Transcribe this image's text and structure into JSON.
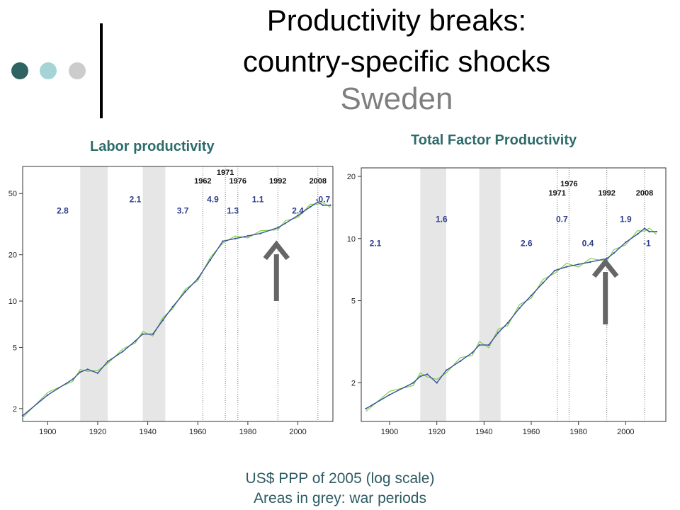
{
  "slide": {
    "title_line1": "Productivity breaks:",
    "title_line2": "country-specific shocks",
    "title_line3": "Sweden",
    "bullet_colors": [
      "#2f6363",
      "#a6d3d6",
      "#cccccc"
    ],
    "footer_line1": "US$ PPP of 2005 (log scale)",
    "footer_line2": "Areas in grey: war periods"
  },
  "chart_data": [
    {
      "type": "line",
      "title": "Labor productivity",
      "xlim": [
        1890,
        2014
      ],
      "ylim": [
        1.65,
        75
      ],
      "yscale": "log",
      "x_ticks": [
        "1900",
        "1920",
        "1940",
        "1960",
        "1980",
        "2000"
      ],
      "y_ticks": [
        "2",
        "5",
        "10",
        "20",
        "50"
      ],
      "war_periods": [
        [
          1913,
          1924
        ],
        [
          1938,
          1947
        ]
      ],
      "break_years": [
        {
          "year": 1962,
          "label": "1962"
        },
        {
          "year": 1971,
          "label": "1971"
        },
        {
          "year": 1976,
          "label": "1976"
        },
        {
          "year": 1992,
          "label": "1992"
        },
        {
          "year": 2008,
          "label": "2008"
        }
      ],
      "growth_rates": [
        {
          "x": 1906,
          "y": 37,
          "label": "2.8"
        },
        {
          "x": 1935,
          "y": 44,
          "label": "2.1"
        },
        {
          "x": 1954,
          "y": 37,
          "label": "3.7"
        },
        {
          "x": 1966,
          "y": 44,
          "label": "4.9"
        },
        {
          "x": 1974,
          "y": 37,
          "label": "1.3"
        },
        {
          "x": 1984,
          "y": 44,
          "label": "1.1"
        },
        {
          "x": 2000,
          "y": 37,
          "label": "2.4"
        },
        {
          "x": 2010,
          "y": 44,
          "label": "-0.7"
        }
      ],
      "arrow_year": 1992,
      "series": [
        {
          "values": [
            [
              1890,
              1.8
            ],
            [
              1900,
              2.45
            ],
            [
              1910,
              3.1
            ],
            [
              1913,
              3.45
            ],
            [
              1916,
              3.6
            ],
            [
              1920,
              3.4
            ],
            [
              1924,
              4.05
            ],
            [
              1930,
              4.7
            ],
            [
              1935,
              5.5
            ],
            [
              1938,
              6.1
            ],
            [
              1942,
              6.1
            ],
            [
              1946,
              7.5
            ],
            [
              1950,
              9.2
            ],
            [
              1955,
              11.5
            ],
            [
              1960,
              14.0
            ],
            [
              1965,
              18.5
            ],
            [
              1970,
              24.5
            ],
            [
              1975,
              25.5
            ],
            [
              1980,
              26.5
            ],
            [
              1985,
              27.5
            ],
            [
              1992,
              30
            ],
            [
              1995,
              32
            ],
            [
              2000,
              36
            ],
            [
              2005,
              41
            ],
            [
              2008,
              44
            ],
            [
              2010,
              42
            ],
            [
              2013,
              42
            ]
          ]
        }
      ]
    },
    {
      "type": "line",
      "title": "Total Factor Productivity",
      "xlim": [
        1888,
        2017
      ],
      "ylim": [
        1.3,
        22
      ],
      "yscale": "log",
      "x_ticks": [
        "1900",
        "1920",
        "1940",
        "1960",
        "1980",
        "2000"
      ],
      "y_ticks": [
        "2",
        "5",
        "10",
        "20"
      ],
      "war_periods": [
        [
          1913,
          1924
        ],
        [
          1938,
          1947
        ]
      ],
      "break_years": [
        {
          "year": 1971,
          "label": "1971"
        },
        {
          "year": 1976,
          "label": "1976"
        },
        {
          "year": 1992,
          "label": "1992"
        },
        {
          "year": 2008,
          "label": "2008"
        }
      ],
      "growth_rates": [
        {
          "x": 1894,
          "y": 9.2,
          "label": "2.1"
        },
        {
          "x": 1922,
          "y": 12,
          "label": "1.6"
        },
        {
          "x": 1958,
          "y": 9.2,
          "label": "2.6"
        },
        {
          "x": 1973,
          "y": 12,
          "label": "0.7"
        },
        {
          "x": 1984,
          "y": 9.2,
          "label": "0.4"
        },
        {
          "x": 2000,
          "y": 12,
          "label": "1.9"
        },
        {
          "x": 2009,
          "y": 9.2,
          "label": "-1"
        }
      ],
      "arrow_year": 1992,
      "series": [
        {
          "values": [
            [
              1890,
              1.5
            ],
            [
              1900,
              1.75
            ],
            [
              1910,
              2.0
            ],
            [
              1913,
              2.15
            ],
            [
              1916,
              2.2
            ],
            [
              1920,
              2.0
            ],
            [
              1924,
              2.3
            ],
            [
              1930,
              2.55
            ],
            [
              1935,
              2.8
            ],
            [
              1938,
              3.05
            ],
            [
              1942,
              3.05
            ],
            [
              1946,
              3.5
            ],
            [
              1950,
              3.9
            ],
            [
              1955,
              4.6
            ],
            [
              1960,
              5.3
            ],
            [
              1965,
              6.1
            ],
            [
              1970,
              7.0
            ],
            [
              1975,
              7.3
            ],
            [
              1980,
              7.5
            ],
            [
              1985,
              7.7
            ],
            [
              1992,
              8.0
            ],
            [
              1995,
              8.5
            ],
            [
              2000,
              9.6
            ],
            [
              2005,
              10.5
            ],
            [
              2008,
              11.2
            ],
            [
              2010,
              10.8
            ],
            [
              2013,
              10.8
            ]
          ]
        }
      ]
    }
  ]
}
